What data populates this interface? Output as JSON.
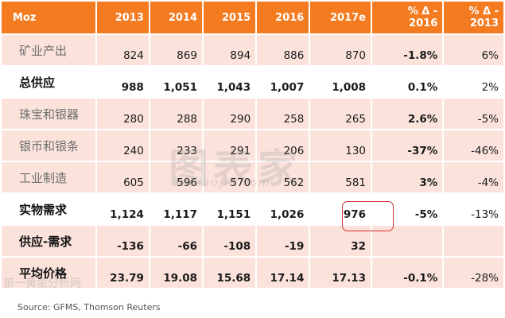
{
  "table": {
    "headers": [
      "Moz",
      "2013",
      "2014",
      "2015",
      "2016",
      "2017e",
      "% Δ -\n2016",
      "% Δ -\n2013"
    ],
    "rows": [
      {
        "label": "矿业产出",
        "values": [
          "824",
          "869",
          "894",
          "886",
          "870",
          "-1.8%",
          "6%"
        ]
      },
      {
        "label": "总供应",
        "values": [
          "988",
          "1,051",
          "1,043",
          "1,007",
          "1,008",
          "0.1%",
          "2%"
        ]
      },
      {
        "label": "珠宝和银器",
        "values": [
          "280",
          "288",
          "290",
          "258",
          "265",
          "2.6%",
          "-5%"
        ]
      },
      {
        "label": "银币和银条",
        "values": [
          "240",
          "233",
          "291",
          "206",
          "130",
          "-37%",
          "-46%"
        ]
      },
      {
        "label": "工业制造",
        "values": [
          "605",
          "596",
          "570",
          "562",
          "581",
          "3%",
          "-4%"
        ]
      },
      {
        "label": "实物需求",
        "values": [
          "1,124",
          "1,117",
          "1,151",
          "1,026",
          "976",
          "-5%",
          "-13%"
        ]
      },
      {
        "label": "供应-需求",
        "values": [
          "-136",
          "-66",
          "-108",
          "-19",
          "32",
          "",
          ""
        ]
      },
      {
        "label": "平均价格",
        "values": [
          "23.79",
          "19.08",
          "15.68",
          "17.14",
          "17.13",
          "-0.1%",
          "-28%"
        ]
      }
    ]
  },
  "source": "Source: GFMS, Thomson Reuters",
  "watermark": {
    "main": "图表家",
    "sub": "Tubiaojia.com",
    "bottom": "第一黄金分析网"
  },
  "colors": {
    "header_bg": "#f47b20",
    "row_light": "#fbe3dc",
    "highlight": "#d6303a"
  }
}
